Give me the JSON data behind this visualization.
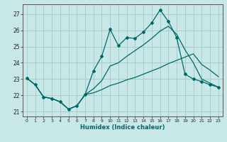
{
  "bg_color": "#c8e8e8",
  "grid_color": "#a8cccc",
  "line_color": "#006868",
  "xlabel": "Humidex (Indice chaleur)",
  "xlim": [
    -0.5,
    23.5
  ],
  "ylim": [
    20.7,
    27.6
  ],
  "yticks": [
    21,
    22,
    23,
    24,
    25,
    26,
    27
  ],
  "xticks": [
    0,
    1,
    2,
    3,
    4,
    5,
    6,
    7,
    8,
    9,
    10,
    11,
    12,
    13,
    14,
    15,
    16,
    17,
    18,
    19,
    20,
    21,
    22,
    23
  ],
  "line1_x": [
    0,
    1,
    2,
    3,
    4,
    5,
    6,
    7,
    8,
    9,
    10,
    11,
    12,
    13,
    14,
    15,
    16,
    17,
    18,
    19,
    20,
    21,
    22,
    23
  ],
  "line1_y": [
    23.05,
    22.65,
    21.9,
    21.8,
    21.6,
    21.15,
    21.35,
    22.05,
    23.5,
    24.4,
    26.05,
    25.05,
    25.55,
    25.5,
    25.9,
    26.45,
    27.25,
    26.55,
    25.55,
    23.3,
    23.0,
    22.85,
    22.65,
    22.5
  ],
  "line2_x": [
    0,
    1,
    2,
    3,
    4,
    5,
    6,
    7,
    8,
    9,
    10,
    11,
    12,
    13,
    14,
    15,
    16,
    17,
    18,
    19,
    20,
    21,
    22,
    23
  ],
  "line2_y": [
    23.05,
    22.65,
    21.9,
    21.8,
    21.6,
    21.15,
    21.35,
    22.05,
    22.4,
    22.9,
    23.8,
    24.0,
    24.4,
    24.75,
    25.1,
    25.5,
    25.95,
    26.25,
    25.75,
    24.8,
    24.0,
    23.0,
    22.75,
    22.5
  ],
  "line3_x": [
    0,
    1,
    2,
    3,
    4,
    5,
    6,
    7,
    8,
    9,
    10,
    11,
    12,
    13,
    14,
    15,
    16,
    17,
    18,
    19,
    20,
    21,
    22,
    23
  ],
  "line3_y": [
    23.05,
    22.65,
    21.9,
    21.8,
    21.6,
    21.15,
    21.35,
    22.05,
    22.15,
    22.35,
    22.6,
    22.75,
    22.95,
    23.1,
    23.3,
    23.5,
    23.7,
    23.95,
    24.15,
    24.35,
    24.55,
    23.9,
    23.55,
    23.15
  ]
}
